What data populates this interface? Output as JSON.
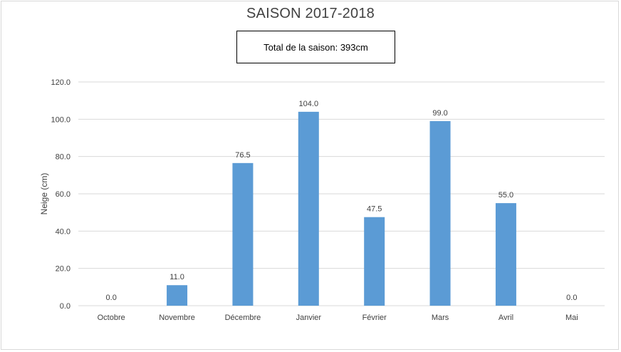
{
  "chart_data": {
    "type": "bar",
    "title": "SAISON 2017-2018",
    "annotation": "Total de la saison: 393cm",
    "categories": [
      "Octobre",
      "Novembre",
      "Décembre",
      "Janvier",
      "Février",
      "Mars",
      "Avril",
      "Mai"
    ],
    "values": [
      0.0,
      11.0,
      76.5,
      104.0,
      47.5,
      99.0,
      55.0,
      0.0
    ],
    "xlabel": "",
    "ylabel": "Neige (cm)",
    "ylim": [
      0,
      120
    ],
    "yticks": [
      0,
      20,
      40,
      60,
      80,
      100,
      120
    ],
    "value_format": "one-decimal",
    "grid": true,
    "legend": "none",
    "colors": {
      "bar": "#5b9bd5",
      "grid": "#d9d9d9",
      "text": "#404040"
    }
  }
}
